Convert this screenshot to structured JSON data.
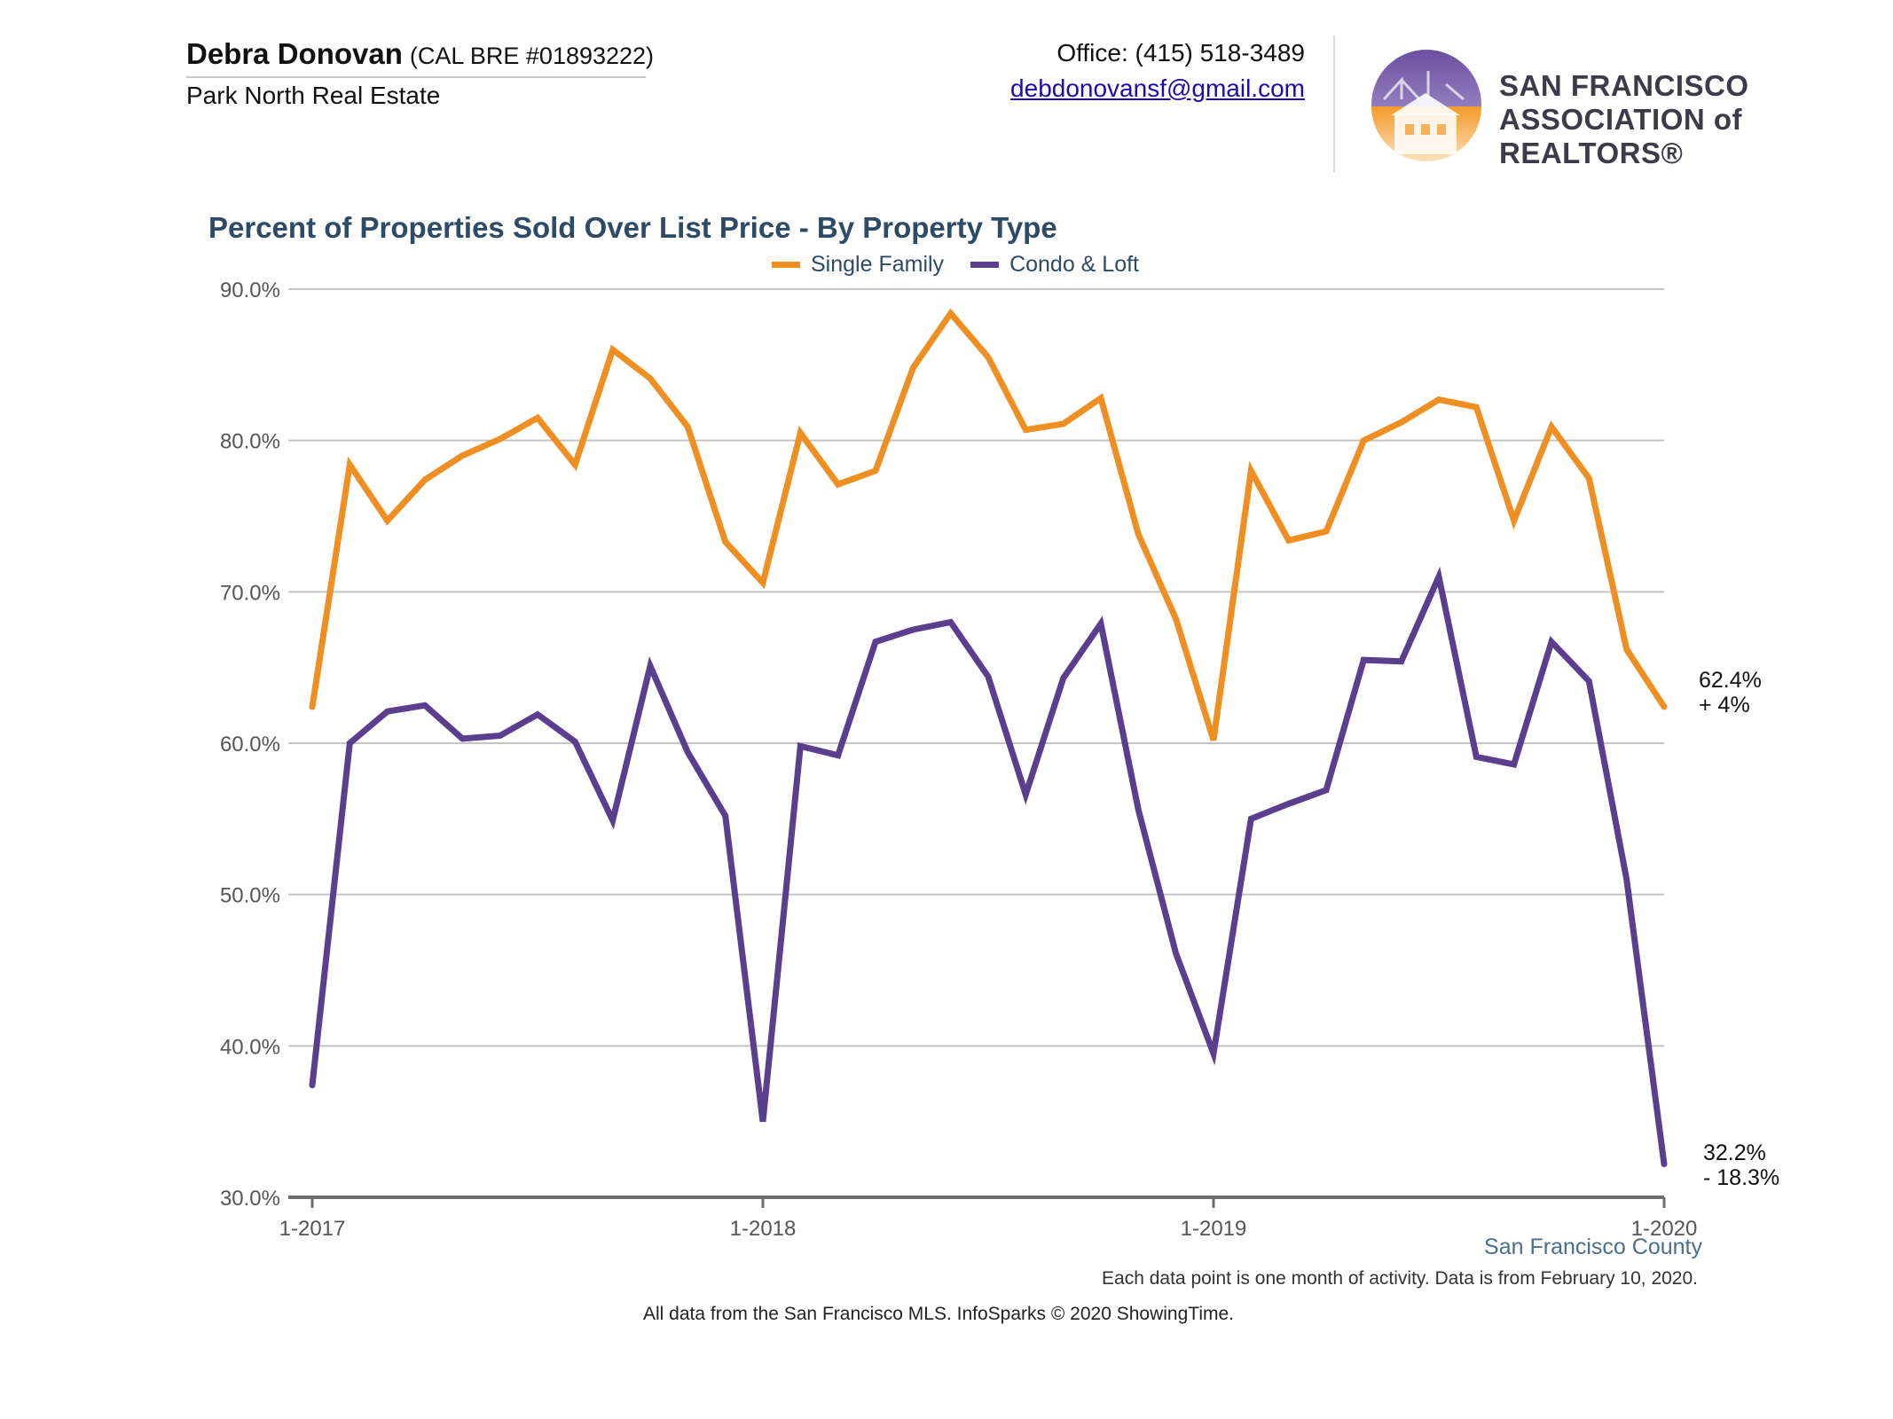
{
  "header": {
    "agent_name": "Debra Donovan",
    "license": "(CAL BRE #01893222)",
    "company": "Park North Real Estate",
    "office": "Office: (415) 518-3489",
    "email": "debdonovansf@gmail.com",
    "logo_line1": "SAN FRANCISCO",
    "logo_line2": "ASSOCIATION of REALTORS®"
  },
  "colors": {
    "single_family": "#ef8f22",
    "condo_loft": "#5b3f8e",
    "grid": "#c4c4c4",
    "axis": "#6e6e6e",
    "title": "#2d4a66"
  },
  "chart_data": {
    "type": "line",
    "title": "Percent of Properties Sold Over List Price - By Property Type",
    "legend_position": "top-center",
    "grid": true,
    "xlabel": "",
    "ylabel": "",
    "ylim": [
      30,
      90
    ],
    "y_ticks": [
      30,
      40,
      50,
      60,
      70,
      80,
      90
    ],
    "y_tick_labels": [
      "30.0%",
      "40.0%",
      "50.0%",
      "60.0%",
      "70.0%",
      "80.0%",
      "90.0%"
    ],
    "x_tick_labels": [
      "1-2017",
      "1-2018",
      "1-2019",
      "1-2020"
    ],
    "x": [
      "1-2017",
      "2-2017",
      "3-2017",
      "4-2017",
      "5-2017",
      "6-2017",
      "7-2017",
      "8-2017",
      "9-2017",
      "10-2017",
      "11-2017",
      "12-2017",
      "1-2018",
      "2-2018",
      "3-2018",
      "4-2018",
      "5-2018",
      "6-2018",
      "7-2018",
      "8-2018",
      "9-2018",
      "10-2018",
      "11-2018",
      "12-2018",
      "1-2019",
      "2-2019",
      "3-2019",
      "4-2019",
      "5-2019",
      "6-2019",
      "7-2019",
      "8-2019",
      "9-2019",
      "10-2019",
      "11-2019",
      "12-2019",
      "1-2020"
    ],
    "series": [
      {
        "name": "Single Family",
        "values": [
          62.4,
          78.4,
          74.7,
          77.4,
          79.0,
          80.1,
          81.5,
          78.4,
          86.0,
          84.1,
          80.9,
          73.3,
          70.6,
          80.5,
          77.1,
          78.0,
          84.8,
          88.4,
          85.5,
          80.7,
          81.1,
          82.8,
          73.8,
          68.2,
          60.2,
          78.0,
          73.4,
          74.0,
          80.0,
          81.2,
          82.7,
          82.2,
          74.7,
          80.9,
          77.5,
          66.2,
          62.4
        ]
      },
      {
        "name": "Condo & Loft",
        "values": [
          37.4,
          60.0,
          62.1,
          62.5,
          60.3,
          60.5,
          61.9,
          60.1,
          54.9,
          65.1,
          59.4,
          55.2,
          35.0,
          59.8,
          59.2,
          66.7,
          67.5,
          68.0,
          64.4,
          56.6,
          64.3,
          67.9,
          55.6,
          46.1,
          39.5,
          55.0,
          56.0,
          56.9,
          65.5,
          65.4,
          71.0,
          59.1,
          58.6,
          66.7,
          64.1,
          51.0,
          32.2
        ]
      }
    ],
    "annotations": [
      {
        "series": "Single Family",
        "value_label": "62.4%",
        "change_label": "+ 4%"
      },
      {
        "series": "Condo & Loft",
        "value_label": "32.2%",
        "change_label": "- 18.3%"
      }
    ],
    "region_label": "San Francisco County"
  },
  "footer": {
    "note": "Each data point is one month of activity. Data is from February 10, 2020.",
    "source": "All data from the San Francisco MLS. InfoSparks © 2020 ShowingTime."
  }
}
